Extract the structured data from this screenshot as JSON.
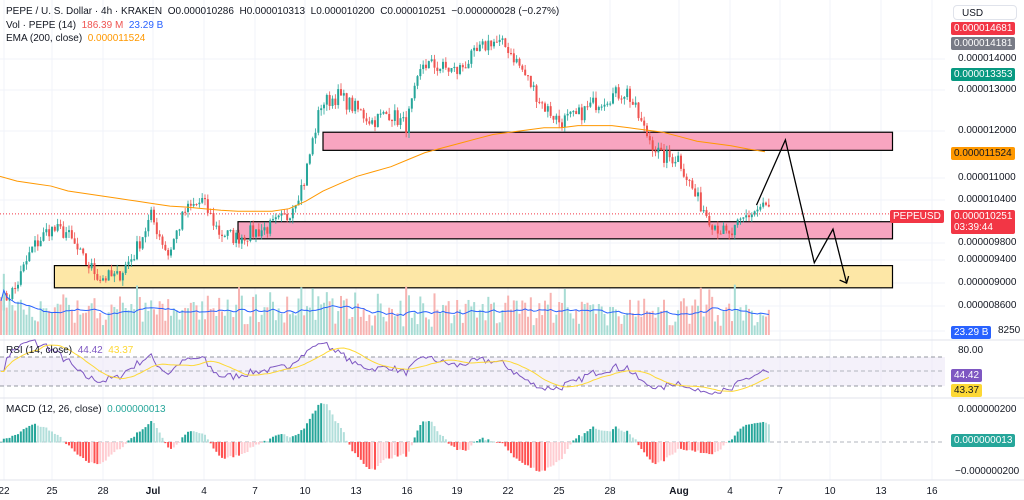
{
  "header": {
    "symbol": "PEPE / U. S. Dollar · 4h · KRAKEN",
    "open": "O0.000010286",
    "high": "H0.000010313",
    "low": "L0.000010200",
    "close": "C0.000010251",
    "change": "−0.000000028 (−0.27%)",
    "vol_label": "Vol · PEPE (14)",
    "vol_value": "186.39 M",
    "vol_ma": "23.29 B",
    "ema_label": "EMA (200, close)",
    "ema_value": "0.000011524"
  },
  "rsi": {
    "label": "RSI (14, close)",
    "value": "44.42",
    "ma": "43.37",
    "axis": "80.00"
  },
  "macd": {
    "label": "MACD (12, 26, close)",
    "value": "0.000000013",
    "axis_top": "0.000000200",
    "axis_bottom": "−0.000000200"
  },
  "price_axis": {
    "currency": "USD",
    "ticks": [
      "0.000014000",
      "0.000013000",
      "0.000012000",
      "0.000011000",
      "0.000010400",
      "0.000009800",
      "0.000009400",
      "0.000009000",
      "0.000008600",
      "8250"
    ],
    "tags": {
      "high": "0.000014181",
      "green": "0.000013353",
      "ema": "0.000011524",
      "last": "0.000010251",
      "countdown": "03:39:44",
      "symbol": "PEPEUSD",
      "volume": "23.29 B",
      "top_red": "0.000014681"
    }
  },
  "colors": {
    "up": "#26a69a",
    "down": "#ef5350",
    "ema": "#ff9800",
    "rsi": "#7e57c2",
    "rsi_ma": "#fdd835",
    "vol_ma": "#2962ff",
    "zone_pink": "#f8a5c0",
    "zone_yellow": "#fde7a6"
  },
  "chart_data": {
    "type": "candlestick",
    "scale": "log",
    "timeframe": "4h",
    "unit": "1e-6 USD",
    "x_ticks": [
      "22",
      "25",
      "28",
      "Jul",
      "4",
      "7",
      "10",
      "13",
      "16",
      "19",
      "22",
      "25",
      "28",
      "Aug",
      "4",
      "7",
      "10",
      "13",
      "16"
    ],
    "daily_close": [
      8.9,
      9.6,
      9.96,
      9.9,
      9.4,
      9.1,
      9.1,
      9.5,
      10.2,
      9.5,
      10.3,
      10.5,
      9.9,
      9.8,
      9.9,
      10.0,
      10.2,
      10.9,
      12.6,
      12.8,
      12.5,
      12.2,
      12.4,
      12.1,
      13.6,
      13.5,
      13.4,
      13.8,
      14.2,
      14.0,
      13.3,
      12.6,
      12.2,
      12.3,
      12.6,
      12.8,
      12.9,
      12.0,
      11.4,
      11.4,
      10.6,
      10.1,
      9.8,
      10.2,
      10.4,
      10.25
    ],
    "ema200_daily": [
      11.0,
      10.9,
      10.85,
      10.8,
      10.7,
      10.65,
      10.6,
      10.55,
      10.5,
      10.45,
      10.4,
      10.38,
      10.35,
      10.32,
      10.3,
      10.3,
      10.3,
      10.35,
      10.5,
      10.7,
      10.85,
      11.0,
      11.1,
      11.2,
      11.35,
      11.5,
      11.6,
      11.7,
      11.8,
      11.9,
      11.95,
      12.0,
      12.05,
      12.05,
      12.1,
      12.1,
      12.1,
      12.05,
      12.0,
      11.95,
      11.85,
      11.75,
      11.7,
      11.65,
      11.58,
      11.52
    ],
    "zones": [
      {
        "color": "pink",
        "low": 11.55,
        "high": 11.95,
        "from_day": 19,
        "to_day": 52.5
      },
      {
        "color": "pink",
        "low": 9.78,
        "high": 10.1,
        "from_day": 14,
        "to_day": 52.5
      },
      {
        "color": "yellow",
        "low": 8.92,
        "high": 9.3,
        "from_day": 3.2,
        "to_day": 52.5
      }
    ],
    "projection_path": [
      [
        44.5,
        10.42
      ],
      [
        46.2,
        11.78
      ],
      [
        47.9,
        9.35
      ],
      [
        49,
        9.96
      ],
      [
        49.8,
        9.0
      ]
    ]
  }
}
